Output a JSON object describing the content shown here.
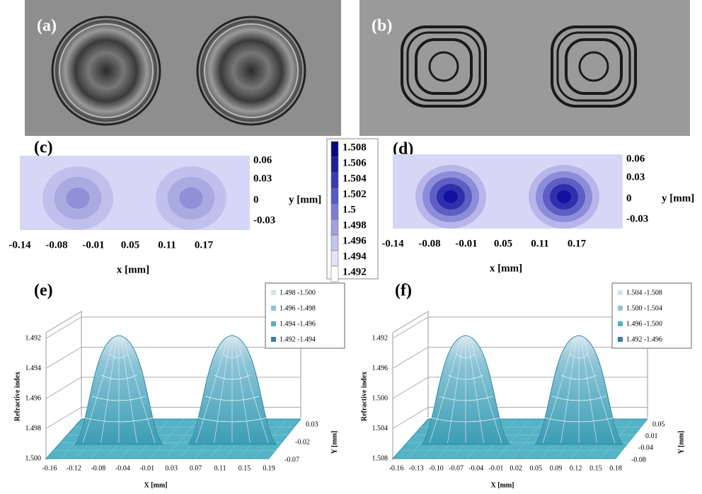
{
  "panels": {
    "a": {
      "label": "(a)"
    },
    "b": {
      "label": "(b)"
    },
    "c": {
      "label": "(c)",
      "x_axis_label": "x [mm]",
      "y_axis_label": "y [mm]",
      "x_ticks": [
        "-0.14",
        "-0.08",
        "-0.01",
        "0.05",
        "0.11",
        "0.17"
      ],
      "y_ticks": [
        "0.06",
        "0.03",
        "0",
        "-0.03"
      ]
    },
    "d": {
      "label": "(d)",
      "x_axis_label": "x [mm]",
      "y_axis_label": "y [mm]",
      "x_ticks": [
        "-0.14",
        "-0.08",
        "-0.01",
        "0.05",
        "0.11",
        "0.17"
      ],
      "y_ticks": [
        "0.06",
        "0.03",
        "0",
        "-0.03"
      ]
    },
    "colorbar": {
      "ticks": [
        "1.508",
        "1.506",
        "1.504",
        "1.502",
        "1.5",
        "1.498",
        "1.496",
        "1.494",
        "1.492"
      ]
    },
    "e": {
      "label": "(e)",
      "z_axis_label": "Refractive index",
      "x_axis_label": "X [mm]",
      "y_axis_label": "Y [mm]",
      "z_ticks": [
        "1.500",
        "1.498",
        "1.496",
        "1.494",
        "1.492"
      ],
      "x_ticks": [
        "-0.16",
        "-0.12",
        "-0.08",
        "-0.04",
        "-0.01",
        "0.03",
        "0.07",
        "0.11",
        "0.15",
        "0.19"
      ],
      "y_ticks": [
        "0.03",
        "-0.02",
        "-0.07"
      ],
      "legend": [
        "1.498 -1.500",
        "1.496 -1.498",
        "1.494 -1.496",
        "1.492 -1.494"
      ]
    },
    "f": {
      "label": "(f)",
      "z_axis_label": "Refractive index",
      "x_axis_label": "X [mm]",
      "y_axis_label": "Y [mm]",
      "z_ticks": [
        "1.508",
        "1.504",
        "1.500",
        "1.496",
        "1.492"
      ],
      "x_ticks": [
        "-0.16",
        "-0.13",
        "-0.10",
        "-0.07",
        "-0.04",
        "-0.01",
        "0.02",
        "0.05",
        "0.09",
        "0.12",
        "0.15",
        "0.18"
      ],
      "y_ticks": [
        "0.05",
        "0.01",
        "-0.04",
        "-0.08"
      ],
      "legend": [
        "1.504 -1.508",
        "1.500 -1.504",
        "1.496 -1.500",
        "1.492 -1.496"
      ]
    }
  }
}
